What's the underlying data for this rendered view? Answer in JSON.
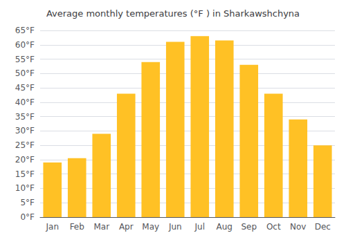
{
  "chart_data": {
    "type": "bar",
    "title": "Average monthly temperatures (°F ) in Sharkawshchyna",
    "categories": [
      "Jan",
      "Feb",
      "Mar",
      "Apr",
      "May",
      "Jun",
      "Jul",
      "Aug",
      "Sep",
      "Oct",
      "Nov",
      "Dec"
    ],
    "values": [
      19,
      20.5,
      29,
      43,
      54,
      61,
      63,
      61.5,
      53,
      43,
      34,
      25
    ],
    "color": "#FFC125",
    "ylim": [
      0,
      65
    ],
    "yticks": [
      {
        "value": 0,
        "label": "0°F"
      },
      {
        "value": 5,
        "label": "5°F"
      },
      {
        "value": 10,
        "label": "10°F"
      },
      {
        "value": 15,
        "label": "15°F"
      },
      {
        "value": 20,
        "label": "20°F"
      },
      {
        "value": 25,
        "label": "25°F"
      },
      {
        "value": 30,
        "label": "30°F"
      },
      {
        "value": 35,
        "label": "35°F"
      },
      {
        "value": 40,
        "label": "40°F"
      },
      {
        "value": 45,
        "label": "45°F"
      },
      {
        "value": 50,
        "label": "50°F"
      },
      {
        "value": 55,
        "label": "55°F"
      },
      {
        "value": 60,
        "label": "60°F"
      },
      {
        "value": 65,
        "label": "65°F"
      }
    ],
    "grid": true
  }
}
